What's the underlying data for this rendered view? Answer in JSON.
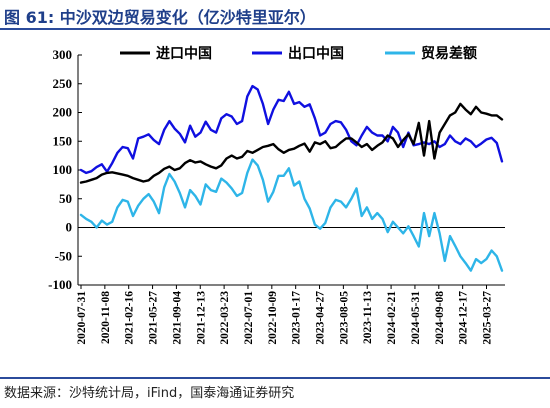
{
  "title": "图 61:  中沙双边贸易变化（亿沙特里亚尔）",
  "source": "数据来源：沙特统计局，iFind，国泰海通证券研究",
  "chart_data": {
    "type": "line",
    "ylim": [
      -100,
      300
    ],
    "yticks": [
      "-100",
      "-50",
      "0",
      "50",
      "100",
      "150",
      "200",
      "250",
      "300"
    ],
    "x_tick_labels": [
      "2020-07-31",
      "2020-11-08",
      "2021-02-16",
      "2021-05-27",
      "2021-09-04",
      "2021-12-13",
      "2022-03-23",
      "2022-07-01",
      "2022-10-09",
      "2023-01-17",
      "2023-04-27",
      "2023-08-05",
      "2023-11-13",
      "2024-02-21",
      "2024-05-31",
      "2024-09-08",
      "2024-12-17",
      "2025-03-27"
    ],
    "x_start": "2020-07-31",
    "x_end": "2025-05-31",
    "legend_position": "top",
    "series": [
      {
        "name": "进口中国",
        "color": "#000000",
        "values": [
          78,
          80,
          83,
          86,
          92,
          95,
          96,
          94,
          92,
          90,
          86,
          83,
          80,
          82,
          90,
          95,
          102,
          106,
          100,
          103,
          112,
          117,
          113,
          115,
          110,
          106,
          103,
          108,
          120,
          125,
          120,
          123,
          133,
          130,
          135,
          140,
          142,
          145,
          136,
          130,
          135,
          137,
          142,
          146,
          132,
          148,
          145,
          150,
          138,
          140,
          148,
          155,
          155,
          148,
          140,
          145,
          135,
          142,
          148,
          160,
          155,
          140,
          152,
          162,
          145,
          182,
          125,
          185,
          120,
          165,
          180,
          195,
          200,
          215,
          205,
          197,
          210,
          200,
          198,
          195,
          195,
          188
        ]
      },
      {
        "name": "出口中国",
        "color": "#1010e0",
        "values": [
          100,
          95,
          98,
          105,
          110,
          97,
          112,
          130,
          140,
          138,
          120,
          155,
          158,
          162,
          152,
          145,
          170,
          185,
          172,
          163,
          148,
          177,
          158,
          165,
          184,
          170,
          165,
          190,
          197,
          193,
          180,
          185,
          228,
          246,
          240,
          215,
          180,
          205,
          222,
          220,
          236,
          215,
          218,
          210,
          214,
          190,
          160,
          165,
          180,
          185,
          183,
          170,
          150,
          143,
          160,
          175,
          165,
          160,
          160,
          150,
          175,
          165,
          140,
          165,
          143,
          145,
          148,
          145,
          150,
          140,
          145,
          160,
          150,
          145,
          155,
          150,
          140,
          146,
          153,
          156,
          147,
          115
        ]
      },
      {
        "name": "贸易差额",
        "color": "#2eb5e8",
        "values": [
          22,
          15,
          10,
          0,
          12,
          5,
          10,
          35,
          48,
          45,
          20,
          38,
          50,
          58,
          45,
          25,
          70,
          93,
          80,
          60,
          35,
          65,
          55,
          40,
          75,
          65,
          62,
          85,
          78,
          68,
          55,
          60,
          95,
          118,
          108,
          83,
          45,
          62,
          90,
          90,
          103,
          73,
          80,
          50,
          33,
          5,
          -2,
          8,
          35,
          48,
          45,
          35,
          50,
          68,
          20,
          35,
          15,
          25,
          15,
          -8,
          10,
          0,
          -10,
          2,
          -15,
          -33,
          25,
          -15,
          25,
          -10,
          -58,
          -15,
          -32,
          -50,
          -62,
          -75,
          -55,
          -62,
          -55,
          -40,
          -50,
          -75
        ]
      }
    ]
  }
}
